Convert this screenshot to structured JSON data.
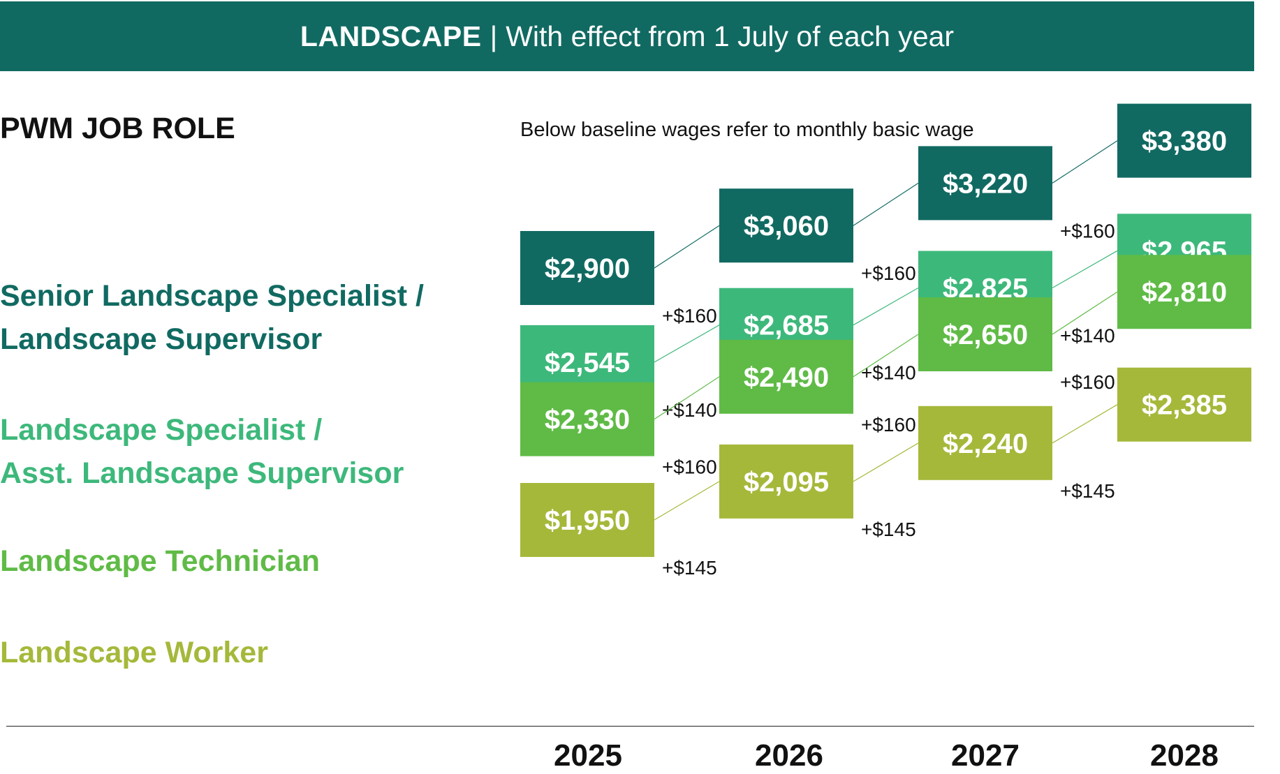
{
  "banner": {
    "title": "LANDSCAPE",
    "separator": "|",
    "subtitle": "With effect from 1 July of each year"
  },
  "role_heading": "PWM JOB ROLE",
  "note": "Below baseline wages refer to monthly basic wage",
  "colors": {
    "banner": "#116a62",
    "senior": "#116a62",
    "specialist": "#3db87b",
    "technician": "#5fbb46",
    "worker": "#a6b83a"
  },
  "roles": [
    {
      "lines": [
        "Senior Landscape Specialist /",
        "Landscape Supervisor"
      ],
      "color": "#116a62"
    },
    {
      "lines": [
        "Landscape Specialist /",
        "Asst. Landscape Supervisor"
      ],
      "color": "#3db87b"
    },
    {
      "lines": [
        "Landscape Technician"
      ],
      "color": "#5fbb46"
    },
    {
      "lines": [
        "Landscape Worker"
      ],
      "color": "#a6b83a"
    }
  ],
  "chart_data": {
    "type": "table",
    "categories": [
      "2025",
      "2026",
      "2027",
      "2028"
    ],
    "series": [
      {
        "name": "Senior Landscape Specialist / Landscape Supervisor",
        "values": [
          2900,
          3060,
          3220,
          3380
        ],
        "labels": [
          "$2,900",
          "$3,060",
          "$3,220",
          "$3,380"
        ],
        "increments": [
          "+$160",
          "+$160",
          "+$160"
        ],
        "color": "#116a62"
      },
      {
        "name": "Landscape Specialist / Asst. Landscape Supervisor",
        "values": [
          2545,
          2685,
          2825,
          2965
        ],
        "labels": [
          "$2,545",
          "$2,685",
          "$2,825",
          "$2,965"
        ],
        "increments": [
          "+$140",
          "+$140",
          "+$140"
        ],
        "color": "#3db87b"
      },
      {
        "name": "Landscape Technician",
        "values": [
          2330,
          2490,
          2650,
          2810
        ],
        "labels": [
          "$2,330",
          "$2,490",
          "$2,650",
          "$2,810"
        ],
        "increments": [
          "+$160",
          "+$160",
          "+$160"
        ],
        "color": "#5fbb46"
      },
      {
        "name": "Landscape Worker",
        "values": [
          1950,
          2095,
          2240,
          2385
        ],
        "labels": [
          "$1,950",
          "$2,095",
          "$2,240",
          "$2,385"
        ],
        "increments": [
          "+$145",
          "+$145",
          "+$145"
        ],
        "color": "#a6b83a"
      }
    ]
  }
}
